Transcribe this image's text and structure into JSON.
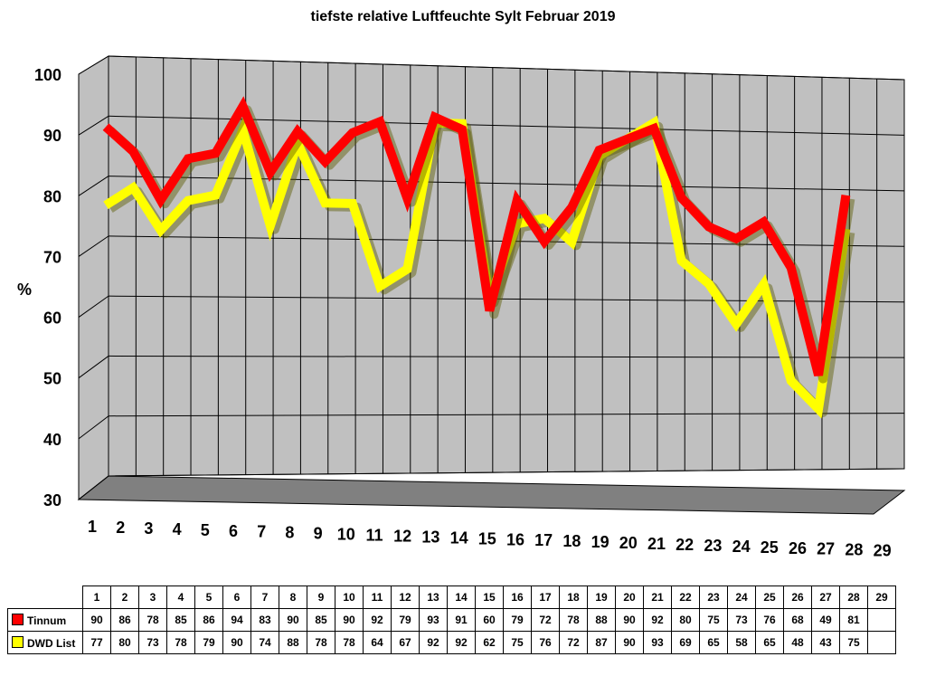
{
  "chart_data": {
    "type": "line",
    "title": "tiefste relative Luftfeuchte Sylt Februar 2019",
    "ylabel": "%",
    "xlabel": "",
    "ylim": [
      30,
      100
    ],
    "yticks": [
      "30",
      "40",
      "50",
      "60",
      "70",
      "80",
      "90",
      "100"
    ],
    "categories": [
      "1",
      "2",
      "3",
      "4",
      "5",
      "6",
      "7",
      "8",
      "9",
      "10",
      "11",
      "12",
      "13",
      "14",
      "15",
      "16",
      "17",
      "18",
      "19",
      "20",
      "21",
      "22",
      "23",
      "24",
      "25",
      "26",
      "27",
      "28",
      "29"
    ],
    "grid": true,
    "legend": "table-below",
    "render": "3d-ribbon",
    "series": [
      {
        "name": "Tinnum",
        "color": "#ff0000",
        "values": [
          90,
          86,
          78,
          85,
          86,
          94,
          83,
          90,
          85,
          90,
          92,
          79,
          93,
          91,
          60,
          79,
          72,
          78,
          88,
          90,
          92,
          80,
          75,
          73,
          76,
          68,
          49,
          81,
          null
        ]
      },
      {
        "name": "DWD List",
        "color": "#ffff00",
        "values": [
          77,
          80,
          73,
          78,
          79,
          90,
          74,
          88,
          78,
          78,
          64,
          67,
          92,
          92,
          62,
          75,
          76,
          72,
          87,
          90,
          93,
          69,
          65,
          58,
          65,
          48,
          43,
          75,
          null
        ]
      }
    ]
  },
  "colors": {
    "wall": "#c0c0c0",
    "floor": "#808080",
    "grid": "#000000"
  }
}
